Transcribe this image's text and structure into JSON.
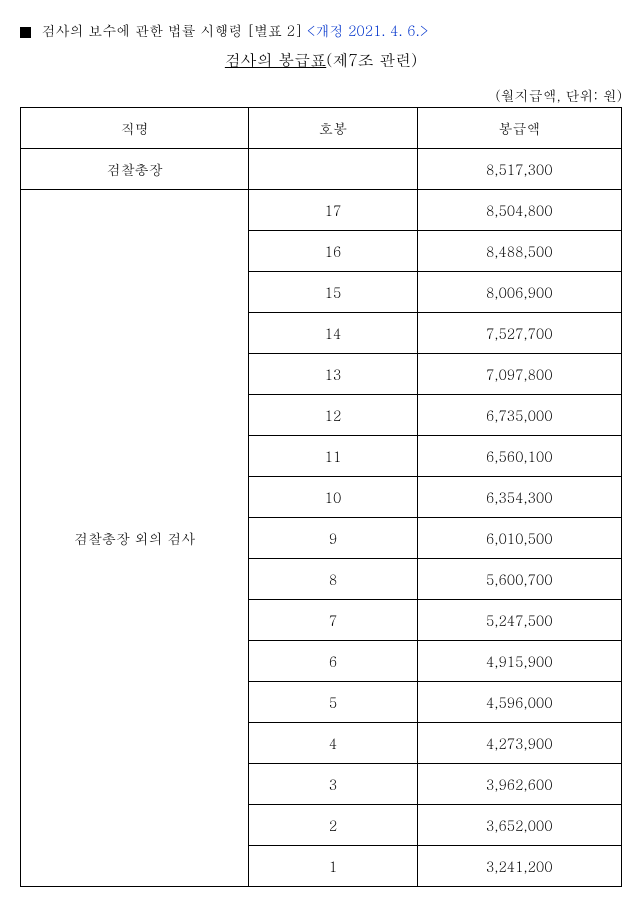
{
  "header": {
    "prefix": "검사의 보수에 관한 법률 시행령 [별표 2]",
    "revision": "<개정 2021. 4. 6.>"
  },
  "title": {
    "underlined": "검사의 봉급표",
    "suffix": "(제7조 관련)"
  },
  "unit": "(월지급액, 단위: 원)",
  "columns": {
    "position": "직명",
    "grade": "호봉",
    "amount": "봉급액"
  },
  "chief": {
    "position": "검찰총장",
    "grade": "",
    "amount": "8,517,300"
  },
  "others": {
    "position": "검찰총장 외의 검사",
    "rows": [
      {
        "grade": "17",
        "amount": "8,504,800"
      },
      {
        "grade": "16",
        "amount": "8,488,500"
      },
      {
        "grade": "15",
        "amount": "8,006,900"
      },
      {
        "grade": "14",
        "amount": "7,527,700"
      },
      {
        "grade": "13",
        "amount": "7,097,800"
      },
      {
        "grade": "12",
        "amount": "6,735,000"
      },
      {
        "grade": "11",
        "amount": "6,560,100"
      },
      {
        "grade": "10",
        "amount": "6,354,300"
      },
      {
        "grade": "9",
        "amount": "6,010,500"
      },
      {
        "grade": "8",
        "amount": "5,600,700"
      },
      {
        "grade": "7",
        "amount": "5,247,500"
      },
      {
        "grade": "6",
        "amount": "4,915,900"
      },
      {
        "grade": "5",
        "amount": "4,596,000"
      },
      {
        "grade": "4",
        "amount": "4,273,900"
      },
      {
        "grade": "3",
        "amount": "3,962,600"
      },
      {
        "grade": "2",
        "amount": "3,652,000"
      },
      {
        "grade": "1",
        "amount": "3,241,200"
      }
    ]
  }
}
